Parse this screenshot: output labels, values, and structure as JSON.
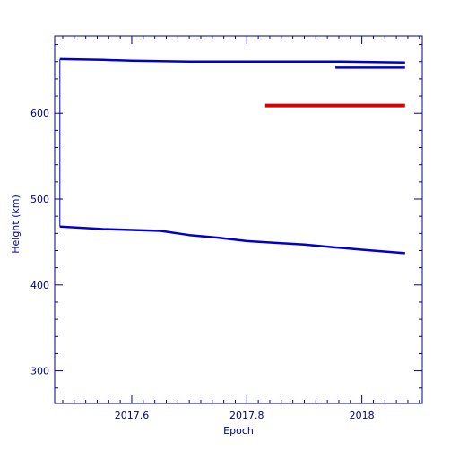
{
  "chart_data": {
    "type": "line",
    "title": "",
    "xlabel": "Epoch",
    "ylabel": "Height (km)",
    "xlim": [
      2017.466,
      2018.105
    ],
    "ylim": [
      262,
      690
    ],
    "x_ticks": [
      2017.6,
      2017.8,
      2018.0
    ],
    "x_tick_labels": [
      "2017.6",
      "2017.8",
      "2018"
    ],
    "y_ticks": [
      300,
      400,
      500,
      600
    ],
    "y_tick_labels": [
      "300",
      "400",
      "500",
      "600"
    ],
    "grid": false,
    "colors": {
      "frame": "#00008b",
      "blue": "#0000cd",
      "red": "#dd0000"
    },
    "series": [
      {
        "color": "blue",
        "points": [
          [
            2017.475,
            663
          ],
          [
            2017.55,
            662
          ],
          [
            2017.6,
            661
          ],
          [
            2017.7,
            660
          ],
          [
            2017.8,
            660
          ],
          [
            2017.9,
            660
          ],
          [
            2017.954,
            660
          ],
          [
            2018.075,
            659
          ]
        ]
      },
      {
        "color": "blue",
        "points": [
          [
            2017.954,
            653
          ],
          [
            2018.075,
            653
          ]
        ]
      },
      {
        "color": "blue",
        "points": [
          [
            2017.475,
            663
          ],
          [
            2017.475,
            468
          ]
        ]
      },
      {
        "color": "blue",
        "points": [
          [
            2017.475,
            468
          ],
          [
            2017.55,
            465
          ],
          [
            2017.6,
            464
          ],
          [
            2017.65,
            463
          ],
          [
            2017.7,
            458
          ],
          [
            2017.75,
            455
          ],
          [
            2017.8,
            451
          ],
          [
            2017.85,
            449
          ],
          [
            2017.9,
            447
          ],
          [
            2017.95,
            444
          ],
          [
            2018.0,
            441
          ],
          [
            2018.075,
            437
          ]
        ]
      },
      {
        "color": "red",
        "points": [
          [
            2017.832,
            609
          ],
          [
            2018.075,
            609
          ]
        ]
      }
    ]
  }
}
